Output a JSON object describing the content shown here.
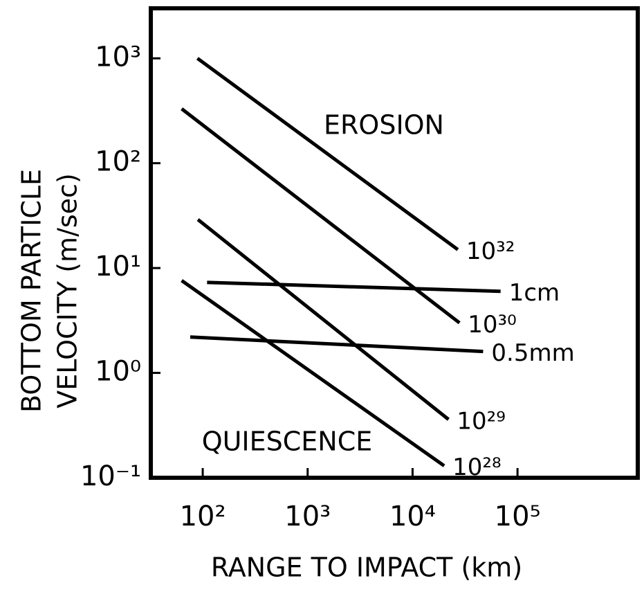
{
  "chart_data": {
    "type": "line",
    "ylabel": [
      "BOTTOM PARTICLE",
      "VELOCITY (m/sec)"
    ],
    "xlabel": "RANGE TO IMPACT (km)",
    "log_x": true,
    "log_y": true,
    "xlim": [
      32,
      1400000
    ],
    "ylim": [
      0.1,
      3000
    ],
    "xticks": [
      {
        "value": 100,
        "label": "10²"
      },
      {
        "value": 1000,
        "label": "10³"
      },
      {
        "value": 10000,
        "label": "10⁴"
      },
      {
        "value": 100000,
        "label": "10⁵"
      }
    ],
    "yticks": [
      {
        "value": 0.1,
        "label": "10⁻¹"
      },
      {
        "value": 1,
        "label": "10⁰"
      },
      {
        "value": 10,
        "label": "10¹"
      },
      {
        "value": 100,
        "label": "10²"
      },
      {
        "value": 1000,
        "label": "10³"
      }
    ],
    "annotations": [
      "EROSION",
      "QUIESCENCE"
    ],
    "series": [
      {
        "name": "10³²",
        "color": "#000000",
        "x": [
          89,
          27000
        ],
        "values": [
          1000,
          15
        ]
      },
      {
        "name": "1cm",
        "color": "#000000",
        "x": [
          110,
          69000
        ],
        "values": [
          7.3,
          6.0
        ]
      },
      {
        "name": "10³⁰",
        "color": "#000000",
        "x": [
          63,
          28000
        ],
        "values": [
          330,
          3
        ]
      },
      {
        "name": "0.5mm",
        "color": "#000000",
        "x": [
          76,
          47000
        ],
        "values": [
          2.2,
          1.6
        ]
      },
      {
        "name": "10²⁹",
        "color": "#000000",
        "x": [
          90,
          22000
        ],
        "values": [
          29,
          0.36
        ]
      },
      {
        "name": "10²⁸",
        "color": "#000000",
        "x": [
          63,
          20000
        ],
        "values": [
          7.6,
          0.13
        ]
      }
    ]
  }
}
